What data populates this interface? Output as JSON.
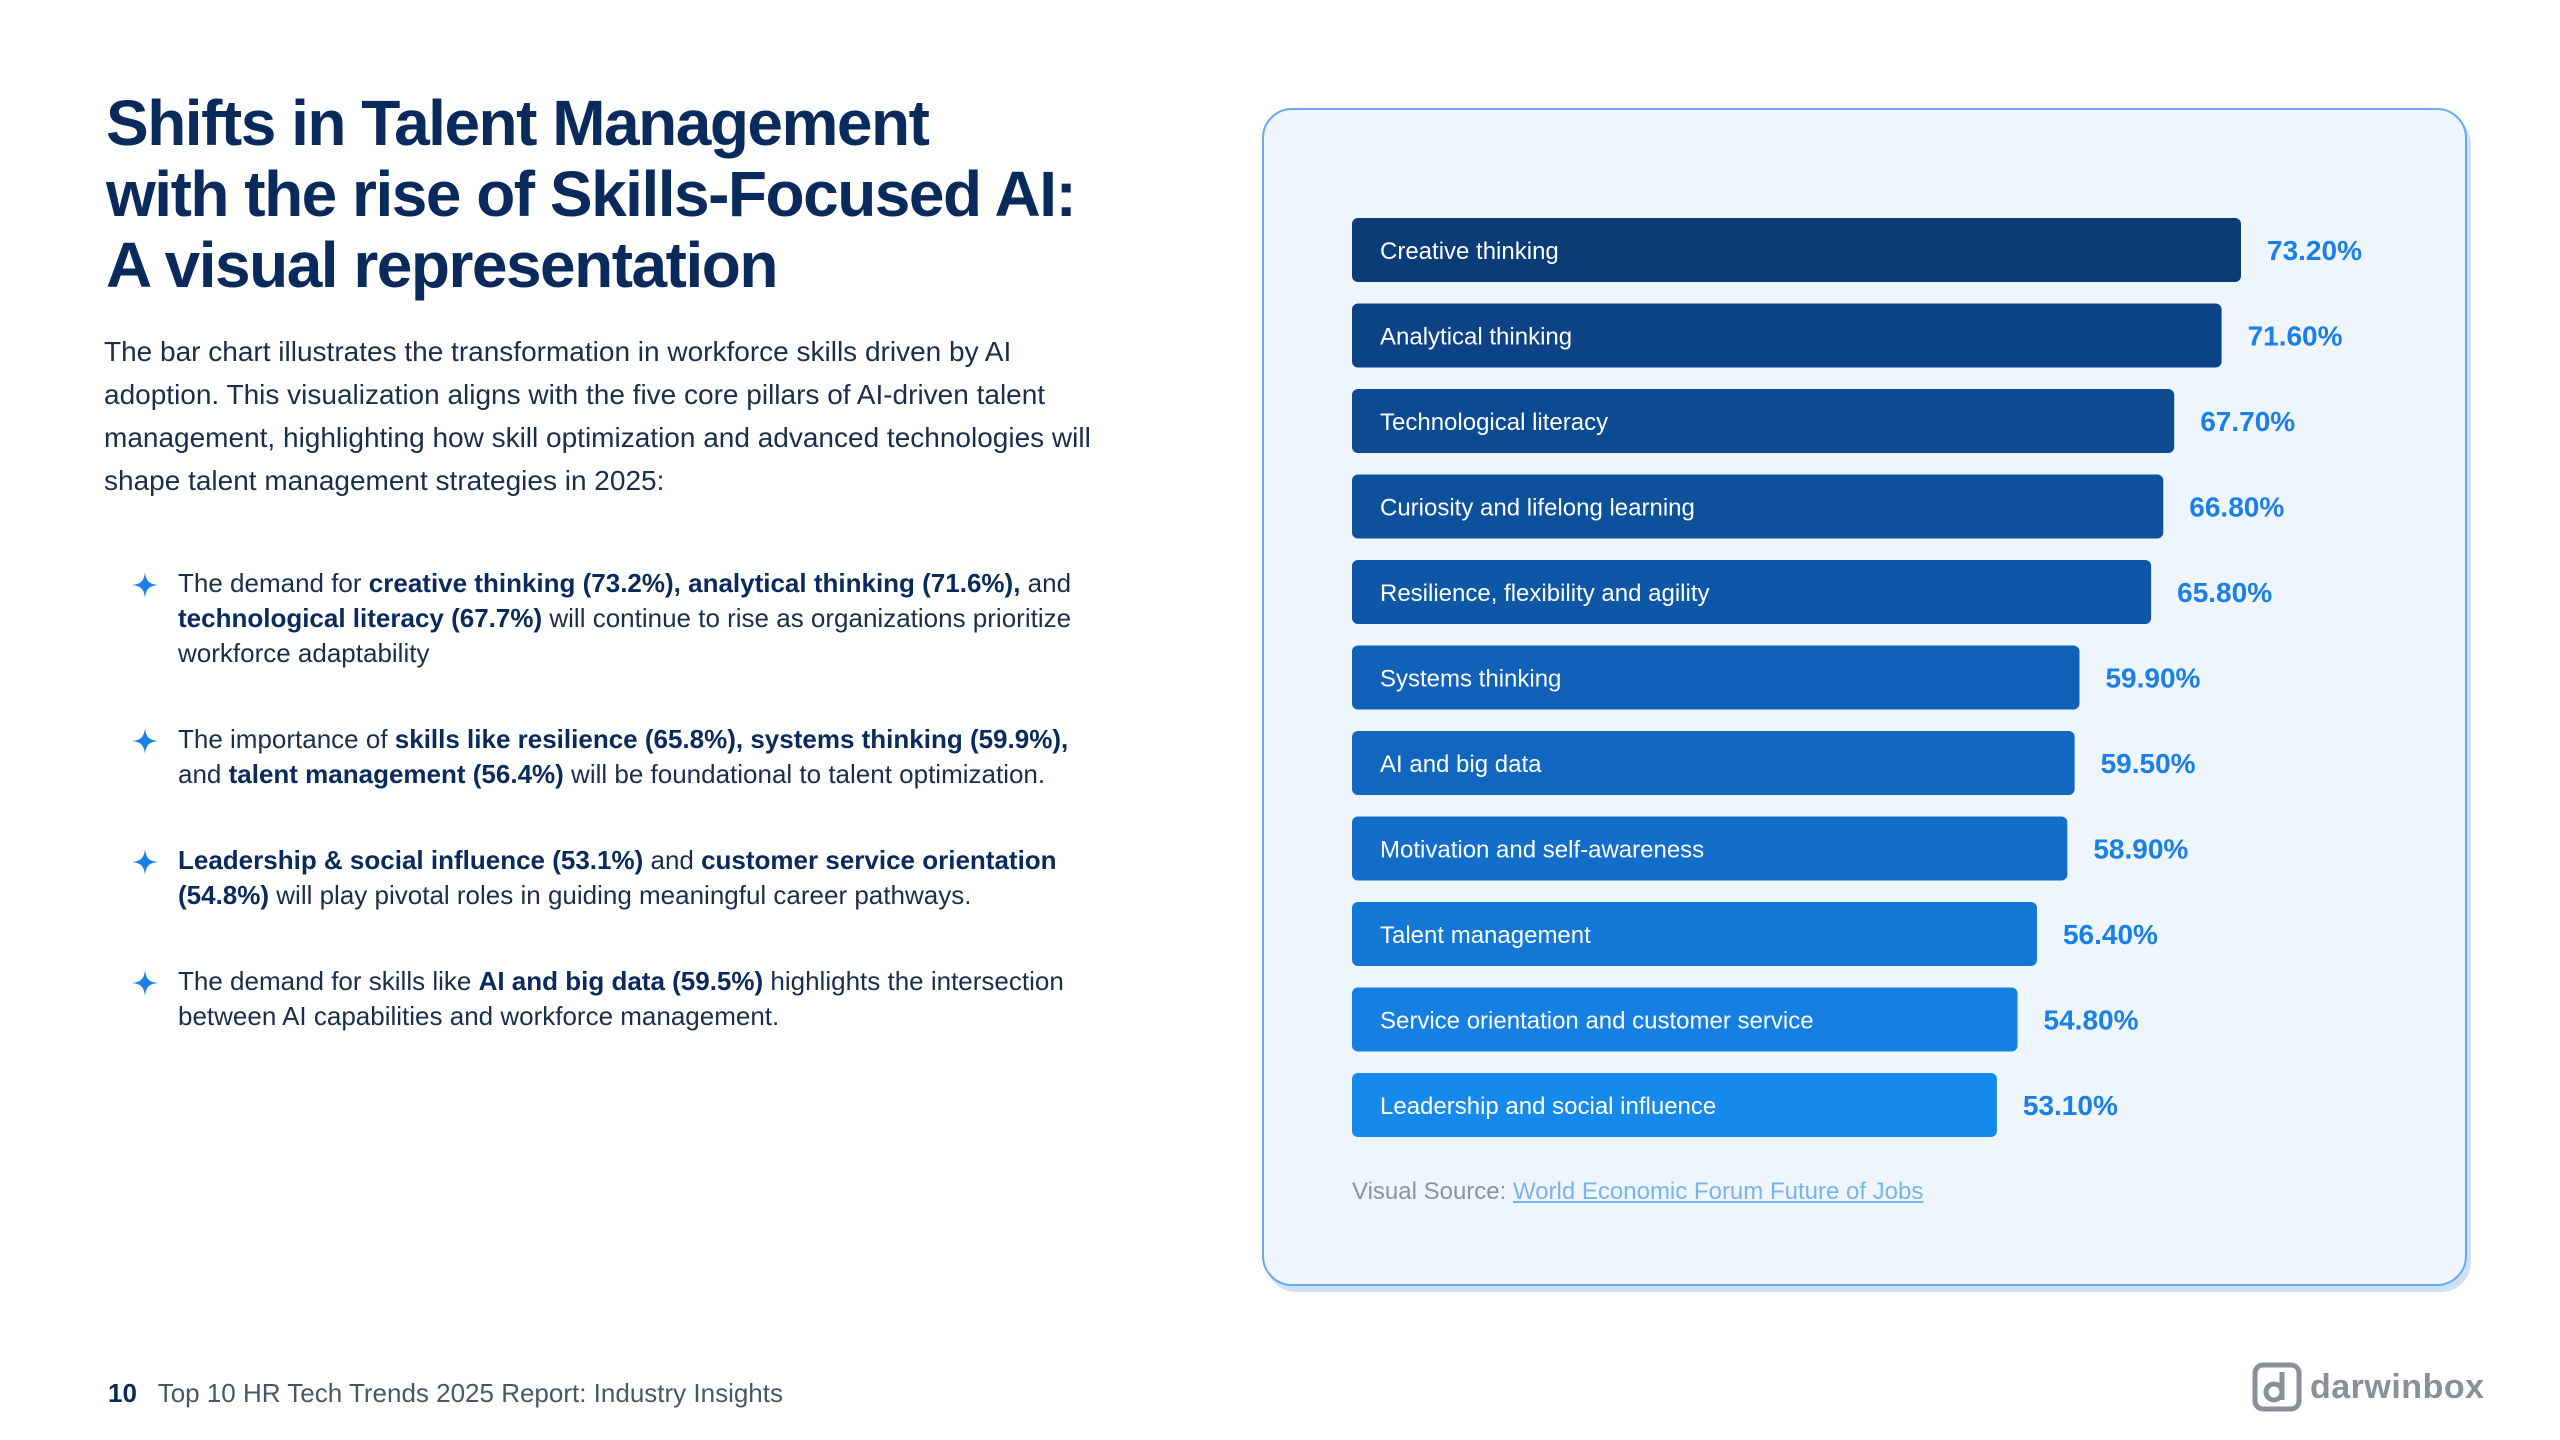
{
  "header": {
    "title_line1": "Shifts in Talent Management",
    "title_line2": "with the rise of Skills-Focused AI:",
    "title_line3": "A visual representation",
    "intro": "The bar chart illustrates the transformation in workforce skills driven by AI adoption. This visualization aligns with the five core pillars of AI-driven talent management, highlighting how skill optimization and advanced technologies will shape talent management strategies in 2025:"
  },
  "bullets": [
    {
      "parts": [
        {
          "t": "The demand for ",
          "b": false
        },
        {
          "t": "creative thinking (73.2%), analytical thinking (71.6%),",
          "b": true
        },
        {
          "t": " and ",
          "b": false
        },
        {
          "t": "technological literacy (67.7%)",
          "b": true
        },
        {
          "t": " will continue to rise as organizations prioritize workforce adaptability",
          "b": false
        }
      ]
    },
    {
      "parts": [
        {
          "t": "The importance of ",
          "b": false
        },
        {
          "t": "skills like resilience (65.8%), systems thinking (59.9%),",
          "b": true
        },
        {
          "t": " and ",
          "b": false
        },
        {
          "t": "talent management (56.4%)",
          "b": true
        },
        {
          "t": " will be foundational to talent optimization.",
          "b": false
        }
      ]
    },
    {
      "parts": [
        {
          "t": "Leadership & social influence (53.1%)",
          "b": true
        },
        {
          "t": " and ",
          "b": false
        },
        {
          "t": "customer service orientation (54.8%)",
          "b": true
        },
        {
          "t": " will play pivotal roles in guiding meaningful career pathways.",
          "b": false
        }
      ]
    },
    {
      "parts": [
        {
          "t": "The demand for skills like ",
          "b": false
        },
        {
          "t": "AI and big data (59.5%)",
          "b": true
        },
        {
          "t": " highlights the intersection between AI capabilities and workforce management.",
          "b": false
        }
      ]
    }
  ],
  "chart_data": {
    "type": "bar",
    "orientation": "horizontal",
    "categories": [
      "Creative thinking",
      "Analytical thinking",
      "Technological literacy",
      "Curiosity and lifelong learning",
      "Resilience, flexibility and agility",
      "Systems thinking",
      "AI and big data",
      "Motivation and self-awareness",
      "Talent management",
      "Service orientation and customer service",
      "Leadership and social influence"
    ],
    "values": [
      73.2,
      71.6,
      67.7,
      66.8,
      65.8,
      59.9,
      59.5,
      58.9,
      56.4,
      54.8,
      53.1
    ],
    "value_labels": [
      "73.20%",
      "71.60%",
      "67.70%",
      "66.80%",
      "65.80%",
      "59.90%",
      "59.50%",
      "58.90%",
      "56.40%",
      "54.80%",
      "53.10%"
    ],
    "bar_colors": [
      "#0a3c78",
      "#0b4386",
      "#0c4a92",
      "#0d509c",
      "#0e57a7",
      "#1061b7",
      "#1167c0",
      "#126ec9",
      "#1377d5",
      "#1580e1",
      "#168aec"
    ],
    "label_color": "#1a7fe6",
    "title": "",
    "xlabel": "",
    "ylabel": "",
    "xlim": [
      0,
      80
    ],
    "grid": false,
    "legend": "none"
  },
  "source": {
    "prefix": "Visual Source: ",
    "link_text": "World Economic Forum Future of Jobs"
  },
  "footer": {
    "page_number": "10",
    "report_title": "Top 10 HR Tech Trends 2025 Report: Industry Insights",
    "logo_text": "darwinbox"
  }
}
